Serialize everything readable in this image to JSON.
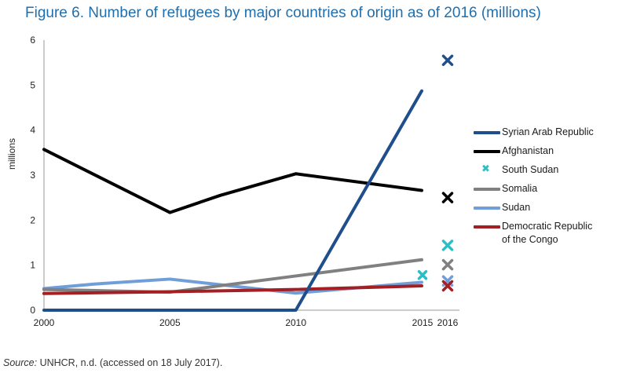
{
  "title": "Figure 6. Number of refugees by major countries of origin as of 2016 (millions)",
  "source": {
    "label": "Source:",
    "text": " UNHCR, n.d. (accessed on 18 July 2017)."
  },
  "legend": {
    "syria": "Syrian Arab Republic",
    "afghanistan": "Afghanistan",
    "south_sudan": "South Sudan",
    "somalia": "Somalia",
    "sudan": "Sudan",
    "drc_line1": "Democratic Republic",
    "drc_line2": "of the Congo"
  },
  "chart_data": {
    "type": "line",
    "title": "Figure 6. Number of refugees by major countries of origin as of 2016 (millions)",
    "xlabel": "",
    "ylabel": "millions",
    "xlim": [
      2000,
      2016
    ],
    "ylim": [
      0,
      6
    ],
    "x_ticks": [
      2000,
      2005,
      2010,
      2015,
      2016
    ],
    "y_ticks": [
      0,
      1,
      2,
      3,
      4,
      5,
      6
    ],
    "grid": false,
    "legend_position": "right",
    "series": [
      {
        "name": "Syrian Arab Republic",
        "color": "#1f4e8c",
        "x": [
          2000,
          2010,
          2015
        ],
        "y": [
          0.0,
          0.0,
          4.87
        ],
        "marker_2016": 5.55
      },
      {
        "name": "Afghanistan",
        "color": "#000000",
        "x": [
          2000,
          2005,
          2007,
          2010,
          2015
        ],
        "y": [
          3.57,
          2.17,
          2.55,
          3.03,
          2.66
        ],
        "marker_2016": 2.5
      },
      {
        "name": "South Sudan",
        "color": "#2abfc4",
        "x": [],
        "y": [],
        "marker_2015": 0.78,
        "marker_2016": 1.44
      },
      {
        "name": "Somalia",
        "color": "#808080",
        "x": [
          2000,
          2005,
          2010,
          2015
        ],
        "y": [
          0.46,
          0.4,
          0.76,
          1.12
        ],
        "marker_2016": 1.01
      },
      {
        "name": "Sudan",
        "color": "#6f9ed8",
        "x": [
          2000,
          2002,
          2005,
          2010,
          2015
        ],
        "y": [
          0.48,
          0.58,
          0.69,
          0.38,
          0.62
        ],
        "marker_2016": 0.65
      },
      {
        "name": "Democratic Republic of the Congo",
        "color": "#a31f24",
        "x": [
          2000,
          2005,
          2010,
          2015
        ],
        "y": [
          0.37,
          0.41,
          0.46,
          0.54
        ],
        "marker_2016": 0.54
      }
    ]
  }
}
